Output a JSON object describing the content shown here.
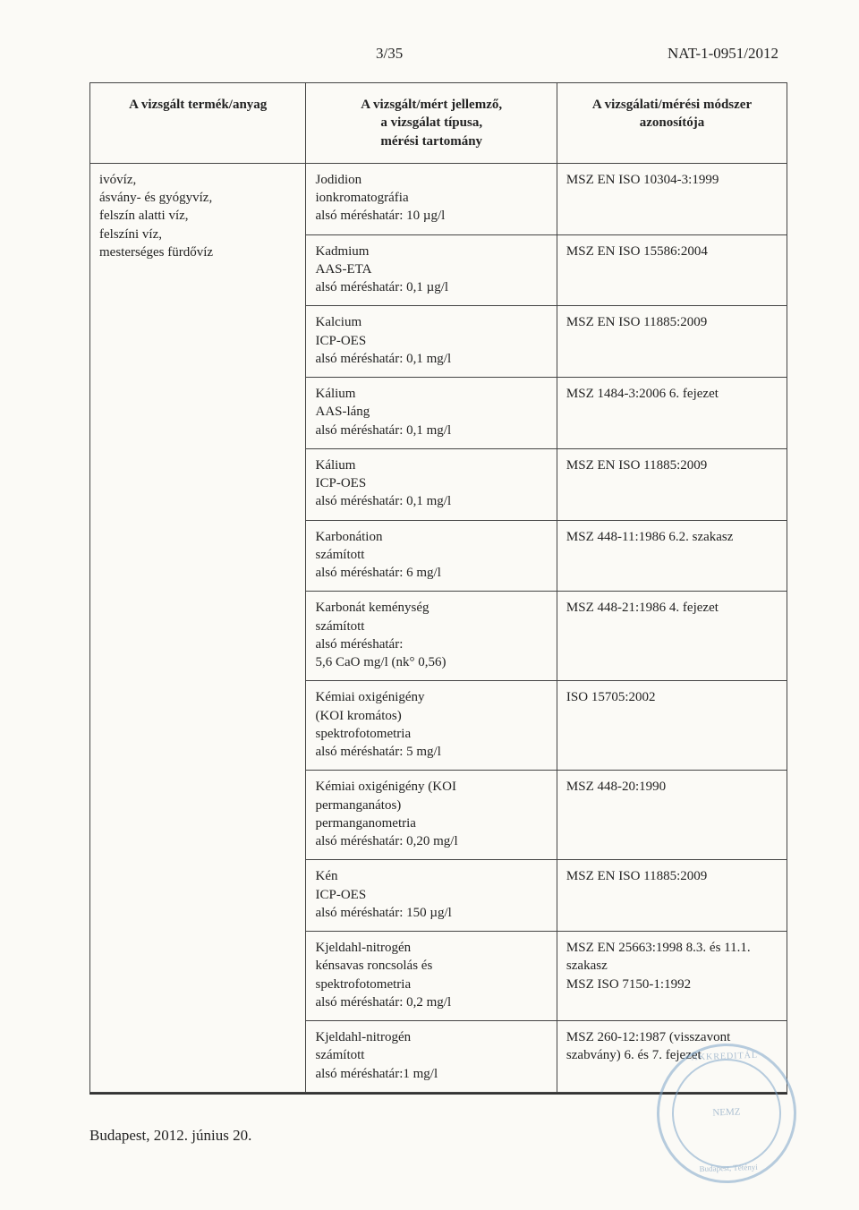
{
  "header": {
    "page_number": "3/35",
    "doc_id": "NAT-1-0951/2012"
  },
  "table": {
    "columns": [
      "A vizsgált termék/anyag",
      "A vizsgált/mért jellemző,\na vizsgálat típusa,\nmérési tartomány",
      "A vizsgálati/mérési módszer\nazonosítója"
    ],
    "product_text": "ivóvíz,\násvány- és gyógyvíz,\nfelszín alatti víz,\nfelszíni víz,\nmesterséges fürdővíz",
    "rows": [
      {
        "param": "Jodidion\nionkromatográfia\nalsó méréshatár: 10 µg/l",
        "method_id": "MSZ EN ISO 10304-3:1999"
      },
      {
        "param": "Kadmium\nAAS-ETA\nalsó méréshatár: 0,1 µg/l",
        "method_id": "MSZ EN ISO 15586:2004"
      },
      {
        "param": "Kalcium\nICP-OES\nalsó méréshatár: 0,1 mg/l",
        "method_id": "MSZ EN ISO 11885:2009"
      },
      {
        "param": "Kálium\nAAS-láng\nalsó méréshatár: 0,1 mg/l",
        "method_id": "MSZ 1484-3:2006 6. fejezet"
      },
      {
        "param": "Kálium\nICP-OES\nalsó méréshatár: 0,1 mg/l",
        "method_id": "MSZ EN ISO 11885:2009"
      },
      {
        "param": "Karbonátion\nszámított\nalsó méréshatár: 6 mg/l",
        "method_id": "MSZ 448-11:1986 6.2. szakasz"
      },
      {
        "param": "Karbonát keménység\nszámított\nalsó méréshatár:\n5,6 CaO mg/l (nk° 0,56)",
        "method_id": "MSZ 448-21:1986 4. fejezet"
      },
      {
        "param": "Kémiai oxigénigény\n(KOI kromátos)\nspektrofotometria\nalsó méréshatár: 5 mg/l",
        "method_id": "ISO 15705:2002"
      },
      {
        "param": "Kémiai oxigénigény (KOI\npermanganátos)\npermanganometria\nalsó méréshatár: 0,20 mg/l",
        "method_id": "MSZ 448-20:1990"
      },
      {
        "param": "Kén\nICP-OES\nalsó méréshatár: 150 µg/l",
        "method_id": "MSZ EN ISO 11885:2009"
      },
      {
        "param": "Kjeldahl-nitrogén\nkénsavas roncsolás és\nspektrofotometria\nalsó méréshatár: 0,2 mg/l",
        "method_id": "MSZ EN 25663:1998 8.3. és 11.1. szakasz\nMSZ ISO 7150-1:1992"
      },
      {
        "param": "Kjeldahl-nitrogén\nszámított\nalsó méréshatár:1 mg/l",
        "method_id": "MSZ 260-12:1987 (visszavont szabvány) 6. és 7. fejezet"
      }
    ]
  },
  "footer": {
    "date_location": "Budapest, 2012. június 20."
  },
  "stamp": {
    "top_text": "AKKREDITÁL",
    "center_text": "NEMZ",
    "bottom_text": "Budapest, Tétényi"
  },
  "colors": {
    "page_bg": "#fbfaf6",
    "text": "#222222",
    "border": "#444444",
    "stamp": "#7fa6c9"
  }
}
